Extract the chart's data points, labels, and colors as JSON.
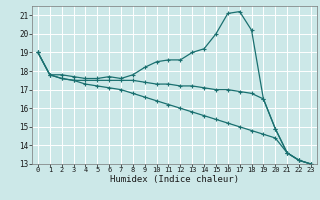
{
  "xlabel": "Humidex (Indice chaleur)",
  "bg_color": "#cce8e8",
  "grid_color": "#ffffff",
  "line_color": "#1a7070",
  "xlim": [
    -0.5,
    23.5
  ],
  "ylim": [
    13,
    21.5
  ],
  "yticks": [
    13,
    14,
    15,
    16,
    17,
    18,
    19,
    20,
    21
  ],
  "xticks": [
    0,
    1,
    2,
    3,
    4,
    5,
    6,
    7,
    8,
    9,
    10,
    11,
    12,
    13,
    14,
    15,
    16,
    17,
    18,
    19,
    20,
    21,
    22,
    23
  ],
  "series": [
    {
      "x": [
        0,
        1,
        2,
        3,
        4,
        5,
        6,
        7,
        8,
        9,
        10,
        11,
        12,
        13,
        14,
        15,
        16,
        17,
        18,
        19,
        20,
        21,
        22,
        23
      ],
      "y": [
        19.0,
        17.8,
        17.8,
        17.7,
        17.6,
        17.6,
        17.7,
        17.6,
        17.8,
        18.2,
        18.5,
        18.6,
        18.6,
        19.0,
        19.2,
        20.0,
        21.1,
        21.2,
        20.2,
        16.5,
        14.9,
        13.6,
        13.2,
        13.0
      ]
    },
    {
      "x": [
        0,
        1,
        2,
        3,
        4,
        5,
        6,
        7,
        8,
        9,
        10,
        11,
        12,
        13,
        14,
        15,
        16,
        17,
        18,
        19,
        20,
        21,
        22,
        23
      ],
      "y": [
        19.0,
        17.8,
        17.6,
        17.5,
        17.5,
        17.5,
        17.5,
        17.5,
        17.5,
        17.4,
        17.3,
        17.3,
        17.2,
        17.2,
        17.1,
        17.0,
        17.0,
        16.9,
        16.8,
        16.5,
        14.9,
        13.6,
        13.2,
        13.0
      ]
    },
    {
      "x": [
        0,
        1,
        2,
        3,
        4,
        5,
        6,
        7,
        8,
        9,
        10,
        11,
        12,
        13,
        14,
        15,
        16,
        17,
        18,
        19,
        20,
        21,
        22,
        23
      ],
      "y": [
        19.0,
        17.8,
        17.6,
        17.5,
        17.3,
        17.2,
        17.1,
        17.0,
        16.8,
        16.6,
        16.4,
        16.2,
        16.0,
        15.8,
        15.6,
        15.4,
        15.2,
        15.0,
        14.8,
        14.6,
        14.4,
        13.6,
        13.2,
        13.0
      ]
    }
  ]
}
